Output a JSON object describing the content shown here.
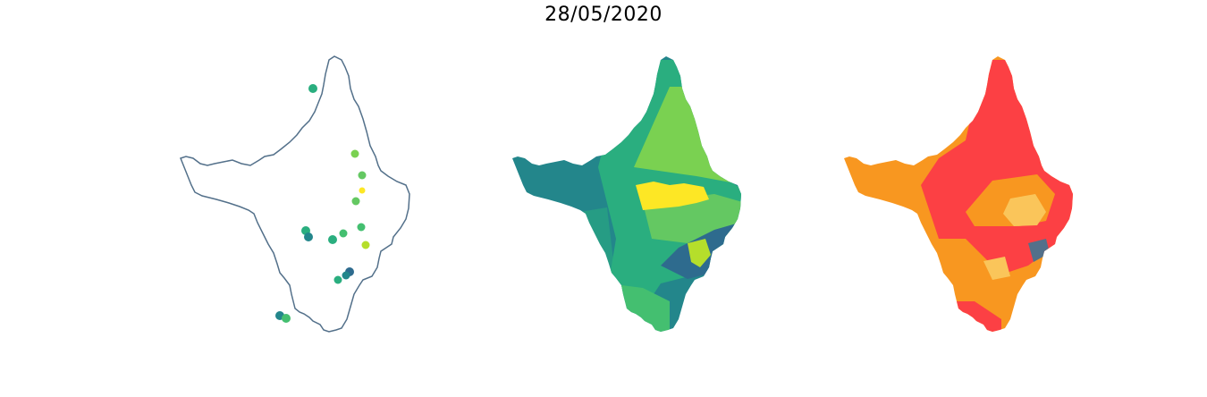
{
  "title": "28/05/2020",
  "colors": {
    "outline": "#53708a",
    "viridis": [
      "#2e6b8e",
      "#23868b",
      "#2aae7f",
      "#44bf70",
      "#64c862",
      "#7ad151",
      "#b5de2b",
      "#fde725"
    ],
    "risk": [
      "#fc4044",
      "#f89720",
      "#fac55a",
      "#53708a"
    ]
  },
  "maps": [
    {
      "name": "station-points-map",
      "kind": "points"
    },
    {
      "name": "viridis-region-map",
      "kind": "choropleth"
    },
    {
      "name": "risk-region-map",
      "kind": "choropleth"
    }
  ]
}
